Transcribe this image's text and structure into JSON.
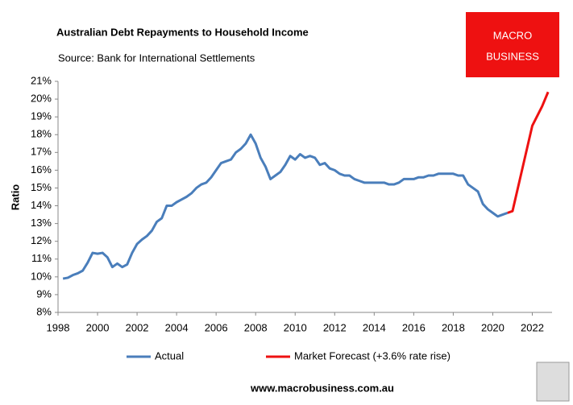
{
  "chart_data": {
    "type": "line",
    "title": "Australian Debt Repayments to Household Income",
    "subtitle": "Source: Bank for International Settlements",
    "ylabel": "Ratio",
    "logo": [
      "MACRO",
      "BUSINESS"
    ],
    "footer": "www.macrobusiness.com.au",
    "xlim": [
      1998,
      2023
    ],
    "xticks": [
      1998,
      2000,
      2002,
      2004,
      2006,
      2008,
      2010,
      2012,
      2014,
      2016,
      2018,
      2020,
      2022
    ],
    "ylim": [
      8,
      21
    ],
    "yticks": [
      {
        "value": 8,
        "label": "8%"
      },
      {
        "value": 9,
        "label": "9%"
      },
      {
        "value": 10,
        "label": "10%"
      },
      {
        "value": 11,
        "label": "11%"
      },
      {
        "value": 12,
        "label": "12%"
      },
      {
        "value": 13,
        "label": "13%"
      },
      {
        "value": 14,
        "label": "14%"
      },
      {
        "value": 15,
        "label": "15%"
      },
      {
        "value": 16,
        "label": "16%"
      },
      {
        "value": 17,
        "label": "17%"
      },
      {
        "value": 18,
        "label": "18%"
      },
      {
        "value": 19,
        "label": "19%"
      },
      {
        "value": 20,
        "label": "20%"
      },
      {
        "value": 21,
        "label": "21%"
      }
    ],
    "grid": false,
    "legend": "bottom",
    "series": [
      {
        "name": "Actual",
        "color": "#4a7ebb",
        "x": [
          1998.25,
          1998.5,
          1998.75,
          1999,
          1999.25,
          1999.5,
          1999.75,
          2000,
          2000.25,
          2000.5,
          2000.75,
          2001,
          2001.25,
          2001.5,
          2001.75,
          2002,
          2002.25,
          2002.5,
          2002.75,
          2003,
          2003.25,
          2003.5,
          2003.75,
          2004,
          2004.25,
          2004.5,
          2004.75,
          2005,
          2005.25,
          2005.5,
          2005.75,
          2006,
          2006.25,
          2006.5,
          2006.75,
          2007,
          2007.25,
          2007.5,
          2007.75,
          2008,
          2008.25,
          2008.5,
          2008.75,
          2009,
          2009.25,
          2009.5,
          2009.75,
          2010,
          2010.25,
          2010.5,
          2010.75,
          2011,
          2011.25,
          2011.5,
          2011.75,
          2012,
          2012.25,
          2012.5,
          2012.75,
          2013,
          2013.25,
          2013.5,
          2013.75,
          2014,
          2014.25,
          2014.5,
          2014.75,
          2015,
          2015.25,
          2015.5,
          2015.75,
          2016,
          2016.25,
          2016.5,
          2016.75,
          2017,
          2017.25,
          2017.5,
          2017.75,
          2018,
          2018.25,
          2018.5,
          2018.75,
          2019,
          2019.25,
          2019.5,
          2019.75,
          2020,
          2020.25,
          2020.5,
          2020.75
        ],
        "values": [
          9.9,
          9.95,
          10.1,
          10.2,
          10.35,
          10.8,
          11.35,
          11.3,
          11.35,
          11.1,
          10.55,
          10.75,
          10.55,
          10.7,
          11.35,
          11.85,
          12.1,
          12.3,
          12.6,
          13.1,
          13.3,
          14.0,
          14.0,
          14.2,
          14.35,
          14.5,
          14.7,
          15.0,
          15.2,
          15.3,
          15.6,
          16.0,
          16.4,
          16.5,
          16.6,
          17.0,
          17.2,
          17.5,
          18.0,
          17.5,
          16.7,
          16.2,
          15.5,
          15.7,
          15.9,
          16.3,
          16.8,
          16.6,
          16.9,
          16.7,
          16.8,
          16.7,
          16.3,
          16.4,
          16.1,
          16.0,
          15.8,
          15.7,
          15.7,
          15.5,
          15.4,
          15.3,
          15.3,
          15.3,
          15.3,
          15.3,
          15.2,
          15.2,
          15.3,
          15.5,
          15.5,
          15.5,
          15.6,
          15.6,
          15.7,
          15.7,
          15.8,
          15.8,
          15.8,
          15.8,
          15.7,
          15.7,
          15.2,
          15.0,
          14.8,
          14.1,
          13.8,
          13.6,
          13.4,
          13.5,
          13.6
        ]
      },
      {
        "name": "Market Forecast (+3.6% rate rise)",
        "color": "#ee1111",
        "x": [
          2020.75,
          2021,
          2021.5,
          2022,
          2022.5,
          2022.8
        ],
        "values": [
          13.6,
          13.7,
          16.1,
          18.5,
          19.6,
          20.4
        ]
      }
    ]
  }
}
